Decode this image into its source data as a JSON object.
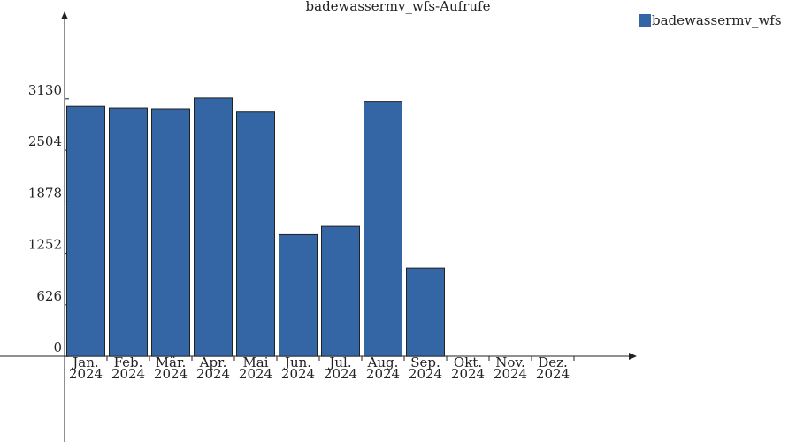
{
  "chart_data": {
    "type": "bar",
    "title": "badewassermv_wfs-Aufrufe",
    "categories": [
      "Jan.\n2024",
      "Feb.\n2024",
      "Mär.\n2024",
      "Apr.\n2024",
      "Mai\n2024",
      "Jun.\n2024",
      "Jul.\n2024",
      "Aug.\n2024",
      "Sep.\n2024",
      "Okt.\n2024",
      "Nov.\n2024",
      "Dez.\n2024"
    ],
    "series": [
      {
        "name": "badewassermv_wfs",
        "color": "#3465a4",
        "values": [
          3040,
          3020,
          3010,
          3140,
          2970,
          1480,
          1580,
          3100,
          1075,
          null,
          null,
          null
        ]
      }
    ],
    "ylim": [
      -1040,
      4170
    ],
    "yticks": [
      0,
      626,
      1252,
      1878,
      2504,
      3130
    ],
    "legend": "top-right"
  }
}
